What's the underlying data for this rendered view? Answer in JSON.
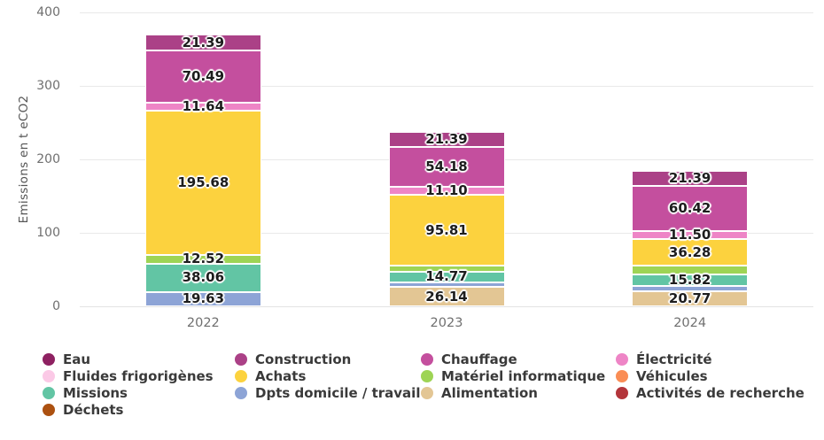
{
  "chart_data": {
    "type": "bar",
    "stacked": true,
    "title": "",
    "ylabel": "Emissions en t eCO2",
    "xlabel": "",
    "ylim": [
      0,
      400
    ],
    "yticks": [
      0,
      100,
      200,
      300,
      400
    ],
    "grid": "horizontal",
    "categories": [
      "2022",
      "2023",
      "2024"
    ],
    "series_note": "series listed in stacking order, bottom to top; label null = segment present but unlabeled in chart (value estimated from pixels); value 0 = segment absent",
    "series": [
      {
        "name": "Alimentation",
        "color": "#e3c694",
        "values": [
          0,
          26.14,
          20.77
        ],
        "labels": [
          null,
          "26.14",
          "20.77"
        ]
      },
      {
        "name": "Dpts domicile / travail",
        "color": "#8da4d6",
        "values": [
          19.63,
          6.5,
          7.0
        ],
        "labels": [
          "19.63",
          null,
          null
        ]
      },
      {
        "name": "Missions",
        "color": "#62c5a4",
        "values": [
          38.06,
          14.77,
          15.82
        ],
        "labels": [
          "38.06",
          "14.77",
          "15.82"
        ]
      },
      {
        "name": "Matériel informatique",
        "color": "#9ed455",
        "values": [
          12.52,
          8.0,
          11.5
        ],
        "labels": [
          "12.52",
          null,
          null
        ]
      },
      {
        "name": "Achats",
        "color": "#fcd23e",
        "values": [
          195.68,
          95.81,
          36.28
        ],
        "labels": [
          "195.68",
          "95.81",
          "36.28"
        ]
      },
      {
        "name": "Électricité",
        "color": "#ee85c6",
        "values": [
          11.64,
          11.1,
          11.5
        ],
        "labels": [
          "11.64",
          "11.10",
          "11.50"
        ]
      },
      {
        "name": "Chauffage",
        "color": "#c44f9e",
        "values": [
          70.49,
          54.18,
          60.42
        ],
        "labels": [
          "70.49",
          "54.18",
          "60.42"
        ]
      },
      {
        "name": "Construction",
        "color": "#ab4187",
        "values": [
          21.39,
          21.39,
          21.39
        ],
        "labels": [
          "21.39",
          "21.39",
          "21.39"
        ]
      }
    ],
    "legend": {
      "position": "bottom",
      "columns": 4,
      "items": [
        {
          "label": "Eau",
          "color": "#8e2161"
        },
        {
          "label": "Construction",
          "color": "#ab4187"
        },
        {
          "label": "Chauffage",
          "color": "#c44f9e"
        },
        {
          "label": "Électricité",
          "color": "#ee85c6"
        },
        {
          "label": "Fluides frigorigènes",
          "color": "#fbc9e6"
        },
        {
          "label": "Achats",
          "color": "#fcd23e"
        },
        {
          "label": "Matériel informatique",
          "color": "#9ed455"
        },
        {
          "label": "Véhicules",
          "color": "#fa8d55"
        },
        {
          "label": "Missions",
          "color": "#62c5a4"
        },
        {
          "label": "Dpts domicile / travail",
          "color": "#8da4d6"
        },
        {
          "label": "Alimentation",
          "color": "#e3c694"
        },
        {
          "label": "Activités de recherche",
          "color": "#b3353b"
        },
        {
          "label": "Déchets",
          "color": "#ac5110"
        }
      ]
    }
  },
  "colors": {
    "background": "#ffffff",
    "gridline": "#e9e9e9",
    "axis_text": "#6f6f6f",
    "legend_text": "#3a3a3a",
    "value_label_text": "#1d1d1d"
  }
}
